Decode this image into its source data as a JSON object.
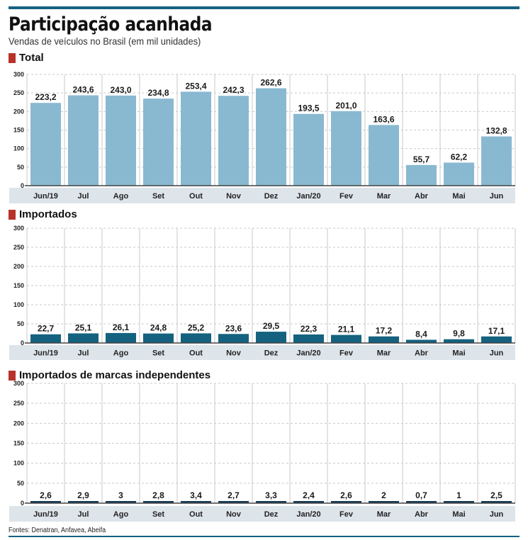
{
  "header": {
    "title": "Participação acanhada",
    "subtitle": "Vendas de veículos no Brasil (em mil unidades)"
  },
  "footer": {
    "sources": "Fontes: Denatran, Anfavea, Abeifa"
  },
  "colors": {
    "rule": "#14627f",
    "section_marker": "#b8322a",
    "total_bar": "#89b9d1",
    "importados_bar": "#14627f",
    "independentes_bar": "#143a56",
    "category_band": "#dde4ea"
  },
  "chart_data": [
    {
      "type": "bar",
      "title": "Total",
      "categories": [
        "Jun/19",
        "Jul",
        "Ago",
        "Set",
        "Out",
        "Nov",
        "Dez",
        "Jan/20",
        "Fev",
        "Mar",
        "Abr",
        "Mai",
        "Jun"
      ],
      "values": [
        223.2,
        243.6,
        243.0,
        234.8,
        253.4,
        242.3,
        262.6,
        193.5,
        201.0,
        163.6,
        55.7,
        62.2,
        132.8
      ],
      "labels": [
        "223,2",
        "243,6",
        "243,0",
        "234,8",
        "253,4",
        "242,3",
        "262,6",
        "193,5",
        "201,0",
        "163,6",
        "55,7",
        "62,2",
        "132,8"
      ],
      "yticks": [
        "300",
        "250",
        "200",
        "150",
        "100",
        "50",
        "0"
      ],
      "ylim": [
        0,
        300
      ],
      "xlabel": "",
      "ylabel": "",
      "grid": true
    },
    {
      "type": "bar",
      "title": "Importados",
      "categories": [
        "Jun/19",
        "Jul",
        "Ago",
        "Set",
        "Out",
        "Nov",
        "Dez",
        "Jan/20",
        "Fev",
        "Mar",
        "Abr",
        "Mai",
        "Jun"
      ],
      "values": [
        22.7,
        25.1,
        26.1,
        24.8,
        25.2,
        23.6,
        29.5,
        22.3,
        21.1,
        17.2,
        8.4,
        9.8,
        17.1
      ],
      "labels": [
        "22,7",
        "25,1",
        "26,1",
        "24,8",
        "25,2",
        "23,6",
        "29,5",
        "22,3",
        "21,1",
        "17,2",
        "8,4",
        "9,8",
        "17,1"
      ],
      "yticks": [
        "300",
        "250",
        "200",
        "150",
        "100",
        "50",
        "0"
      ],
      "ylim": [
        0,
        300
      ],
      "xlabel": "",
      "ylabel": "",
      "grid": true
    },
    {
      "type": "bar",
      "title": "Importados de marcas independentes",
      "categories": [
        "Jun/19",
        "Jul",
        "Ago",
        "Set",
        "Out",
        "Nov",
        "Dez",
        "Jan/20",
        "Fev",
        "Mar",
        "Abr",
        "Mai",
        "Jun"
      ],
      "values": [
        2.6,
        2.9,
        3,
        2.8,
        3.4,
        2.7,
        3.3,
        2.4,
        2.6,
        2,
        0.7,
        1,
        2.5
      ],
      "labels": [
        "2,6",
        "2,9",
        "3",
        "2,8",
        "3,4",
        "2,7",
        "3,3",
        "2,4",
        "2,6",
        "2",
        "0,7",
        "1",
        "2,5"
      ],
      "yticks": [
        "300",
        "250",
        "200",
        "150",
        "100",
        "50",
        "0"
      ],
      "ylim": [
        0,
        300
      ],
      "xlabel": "",
      "ylabel": "",
      "grid": true
    }
  ]
}
